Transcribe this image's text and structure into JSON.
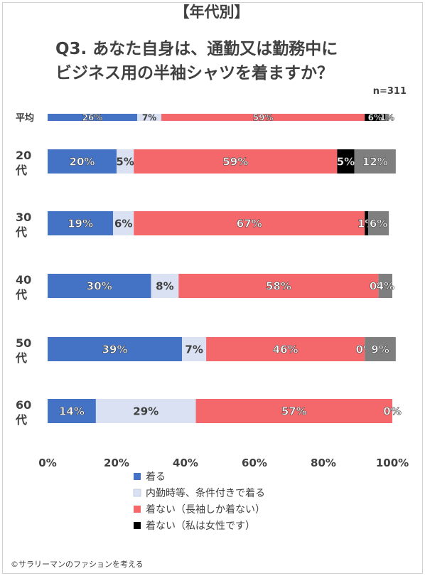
{
  "chart_data": {
    "type": "bar",
    "orientation": "horizontal",
    "stacked": "percent",
    "title_lines": [
      "【年代別】",
      "Q3. あなた自身は、通勤又は勤務中に",
      "ビジネス用の半袖シャツを着ますか？"
    ],
    "note": "n=311",
    "categories": [
      "平均",
      "20代",
      "30代",
      "40代",
      "50代",
      "60代"
    ],
    "category_lines": [
      [
        "平均"
      ],
      [
        "20",
        "代"
      ],
      [
        "30",
        "代"
      ],
      [
        "40",
        "代"
      ],
      [
        "50",
        "代"
      ],
      [
        "60",
        "代"
      ]
    ],
    "series": [
      {
        "name": "着る",
        "color": "#4472C4",
        "label_color": "#ffffff",
        "values": [
          26,
          20,
          19,
          30,
          39,
          14
        ],
        "labels": [
          "26%",
          "20%",
          "19%",
          "30%",
          "39%",
          "14%"
        ]
      },
      {
        "name": "内勤時等、条件付きで着る",
        "color": "#D9E1F2",
        "label_color": "#404040",
        "values": [
          7,
          5,
          6,
          8,
          7,
          29
        ],
        "labels": [
          "7%",
          "5%",
          "6%",
          "8%",
          "7%",
          "29%"
        ]
      },
      {
        "name": "着ない（長袖しか着ない）",
        "color": "#F4676A",
        "label_color": "#ffffff",
        "values": [
          59,
          59,
          67,
          58,
          46,
          57
        ],
        "labels": [
          "59%",
          "59%",
          "67%",
          "58%",
          "46%",
          "57%"
        ]
      },
      {
        "name": "着ない（私は女性です）",
        "color": "#000000",
        "label_color": "#ffffff",
        "values": [
          6,
          5,
          1,
          0,
          0,
          0
        ],
        "labels": [
          "6%",
          "5%",
          "1%",
          "0%",
          "0%",
          "0%"
        ]
      },
      {
        "name": "",
        "color": "#7F7F7F",
        "label_color": "#ffffff",
        "values": [
          1,
          12,
          6,
          4,
          9,
          0
        ],
        "labels": [
          "1%",
          "12%",
          "6%",
          "4%",
          "9%",
          ""
        ]
      }
    ],
    "legend_names": [
      "着る",
      "内勤時等、条件付きで着る",
      "着ない（長袖しか着ない）",
      "着ない（私は女性です）"
    ],
    "xlim": [
      0,
      100
    ],
    "xticks": [
      "0%",
      "20%",
      "40%",
      "60%",
      "80%",
      "100%"
    ],
    "legend_position": "bottom",
    "grid": false
  },
  "copyright": "©サラリーマンのファションを考える"
}
